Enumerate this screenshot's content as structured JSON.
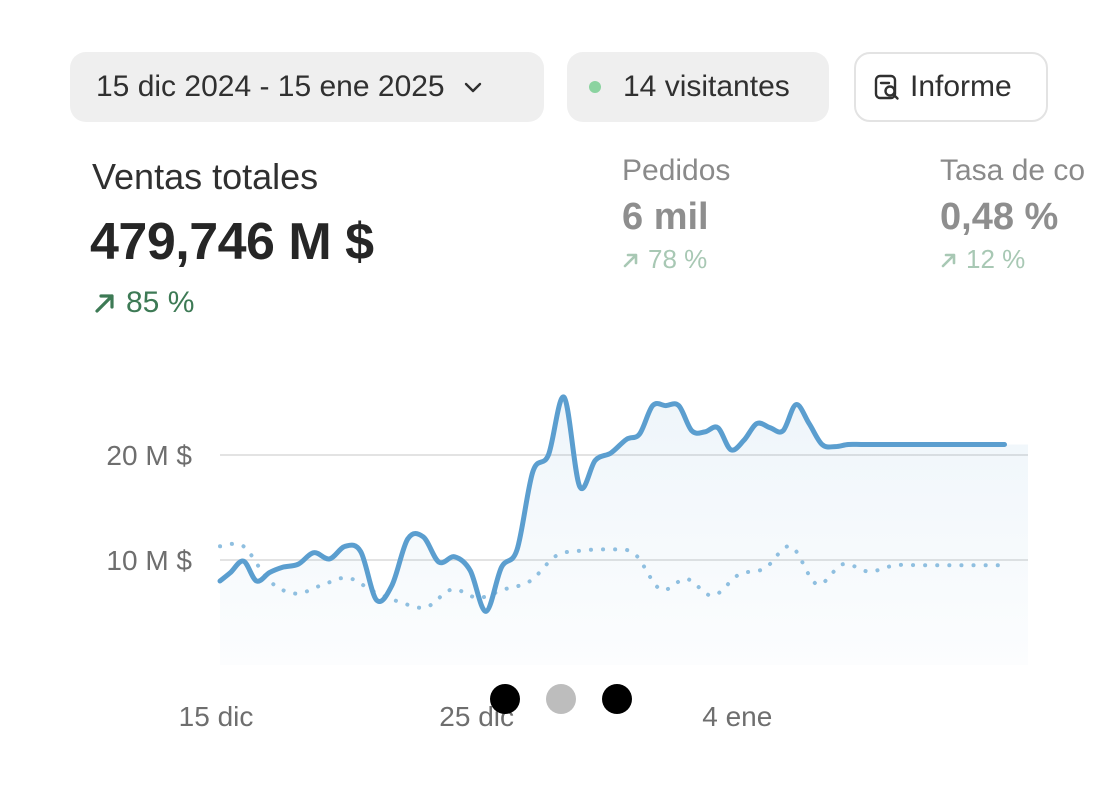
{
  "toolbar": {
    "date_range": "15 dic 2024 - 15 ene 2025",
    "visitors": "14 visitantes",
    "report_label": "Informe"
  },
  "metrics": {
    "primary": {
      "label": "Ventas totales",
      "value": "479,746 M $",
      "change": "85 %"
    },
    "orders": {
      "label": "Pedidos",
      "value": "6 mil",
      "change": "78 %"
    },
    "conversion": {
      "label": "Tasa de co",
      "value": "0,48 %",
      "change": "12 %"
    }
  },
  "colors": {
    "accent": "#5b9ecf",
    "positive": "#3d7a55",
    "live_dot": "#8bd3a0"
  },
  "chart_data": {
    "type": "line",
    "title": "",
    "xlabel": "",
    "ylabel": "",
    "x_ticks": [
      {
        "day": 0,
        "label": "15 dic"
      },
      {
        "day": 10,
        "label": "25 dic"
      },
      {
        "day": 20,
        "label": "4 ene"
      }
    ],
    "y_ticks": [
      {
        "value": 10,
        "label": "10 M $"
      },
      {
        "value": 20,
        "label": "20 M $"
      }
    ],
    "ylim": [
      0,
      30
    ],
    "xlim": [
      0,
      31
    ],
    "grid": true,
    "series": [
      {
        "role": "current",
        "style": "solid",
        "x": [
          0,
          0.4,
          0.9,
          1.4,
          1.9,
          2.4,
          3.0,
          3.6,
          4.2,
          4.8,
          5.4,
          6.0,
          6.6,
          7.2,
          7.8,
          8.4,
          9.0,
          9.6,
          10.2,
          10.8,
          11.4,
          12.0,
          12.6,
          13.2,
          13.8,
          14.4,
          15.0,
          15.6,
          16.1,
          16.6,
          17.1,
          17.6,
          18.1,
          18.6,
          19.1,
          19.6,
          20.1,
          20.6,
          21.1,
          21.6,
          22.1,
          22.6,
          23.1,
          23.6,
          24.1,
          24.6,
          25.1,
          25.6,
          26.1,
          26.6,
          27.1,
          27.6,
          28.1,
          28.6,
          29.1,
          29.6,
          30.1,
          30.6,
          31.0
        ],
        "y": [
          8.0,
          8.8,
          9.9,
          8.0,
          8.8,
          9.3,
          9.6,
          10.7,
          10.1,
          11.3,
          10.8,
          6.2,
          7.6,
          12.0,
          12.2,
          9.8,
          10.3,
          9.0,
          5.1,
          9.3,
          11.0,
          18.4,
          20.0,
          25.5,
          17.0,
          19.5,
          20.2,
          21.5,
          22.0,
          24.7,
          24.7,
          24.7,
          22.3,
          22.2,
          22.6,
          20.5,
          21.4,
          23.0,
          22.6,
          22.3,
          24.8,
          23.0,
          21.0,
          20.8,
          21.0,
          21.0,
          21.0,
          21.0,
          21.0,
          21.0,
          21.0,
          21.0,
          21.0,
          21.0,
          21.0,
          21.0,
          21.0,
          21.0,
          21.0
        ]
      },
      {
        "role": "previous",
        "style": "dotted",
        "x": [
          0,
          0.9,
          1.9,
          2.9,
          3.9,
          4.9,
          5.9,
          6.9,
          7.9,
          8.9,
          9.9,
          10.9,
          11.9,
          12.9,
          13.9,
          14.9,
          15.9,
          16.9,
          17.9,
          18.9,
          19.9,
          20.9,
          21.9,
          22.9,
          23.9,
          24.9,
          25.9,
          26.9,
          27.9,
          28.9,
          29.9,
          30.6
        ],
        "y": [
          11.3,
          11.3,
          8.0,
          6.8,
          7.6,
          8.3,
          7.0,
          6.0,
          5.5,
          7.2,
          6.4,
          7.2,
          8.0,
          10.4,
          10.9,
          11.0,
          10.6,
          7.2,
          8.2,
          6.6,
          8.6,
          9.2,
          11.3,
          7.7,
          9.6,
          8.9,
          9.5,
          9.5,
          9.5,
          9.5,
          9.5,
          9.5
        ]
      }
    ]
  }
}
